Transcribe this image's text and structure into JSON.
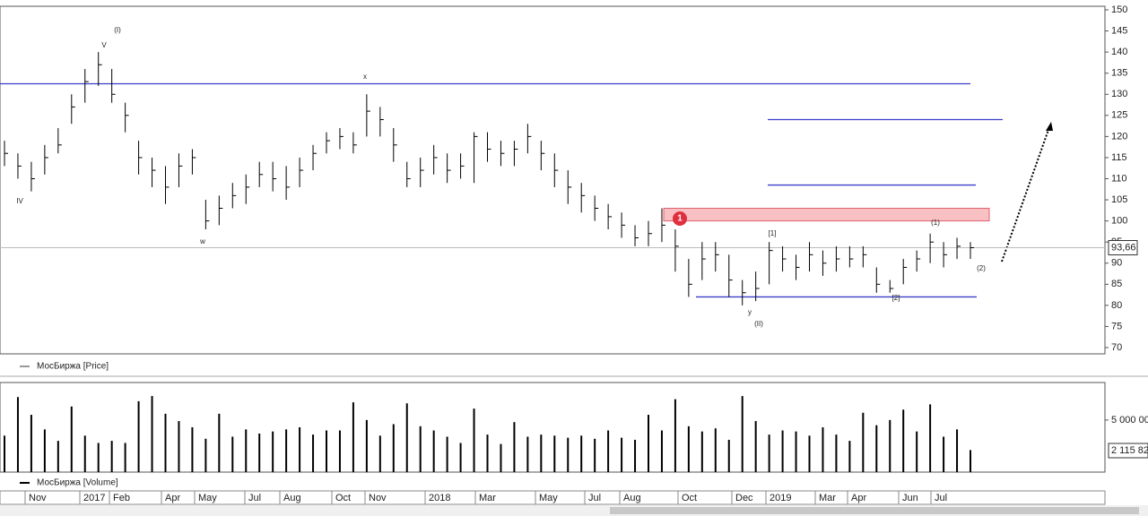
{
  "chart_data": [
    {
      "type": "ohlc",
      "legend": "МосБиржа [Price]",
      "color": "#000000",
      "high": [
        119,
        116,
        114,
        118,
        122,
        130,
        136,
        140,
        136,
        128,
        119,
        115,
        113,
        116,
        117,
        105,
        106,
        109,
        111,
        114,
        114,
        113,
        115,
        118,
        121,
        122,
        121,
        130,
        127,
        122,
        114,
        115,
        118,
        116,
        116,
        121,
        121,
        119,
        119,
        123,
        119,
        116,
        112,
        109,
        106,
        104,
        102,
        99,
        100,
        103,
        98,
        91,
        95,
        95,
        92,
        86,
        88,
        95,
        94,
        92,
        95,
        93,
        94,
        94,
        94,
        89,
        86,
        91,
        93,
        97,
        95,
        96,
        95
      ],
      "low": [
        113,
        110,
        107,
        111,
        116,
        123,
        128,
        132,
        128,
        121,
        111,
        108,
        104,
        108,
        111,
        98,
        99,
        103,
        104,
        108,
        107,
        105,
        108,
        112,
        116,
        117,
        116,
        120,
        120,
        114,
        108,
        108,
        111,
        109,
        110,
        109,
        114,
        113,
        113,
        116,
        112,
        108,
        104,
        102,
        100,
        98,
        96,
        94,
        94,
        95,
        88,
        82,
        86,
        88,
        82,
        80,
        81,
        85,
        88,
        86,
        88,
        87,
        88,
        89,
        89,
        83,
        83,
        85,
        88,
        90,
        89,
        91,
        91
      ],
      "close": [
        116,
        113,
        110,
        115,
        118,
        127,
        133,
        137,
        130,
        125,
        115,
        112,
        108,
        113,
        115,
        100,
        103,
        106,
        108,
        111,
        110,
        108,
        112,
        116,
        119,
        120,
        118,
        126,
        124,
        118,
        110,
        112,
        115,
        112,
        113,
        120,
        117,
        116,
        117,
        120,
        116,
        112,
        108,
        106,
        103,
        101,
        99,
        96,
        97,
        99,
        94,
        85,
        91,
        92,
        86,
        83,
        84,
        93,
        91,
        89,
        92,
        90,
        91,
        91,
        92,
        85,
        84,
        89,
        91,
        95,
        92,
        94,
        93.66
      ],
      "ylim": [
        70,
        150
      ],
      "yticks": [
        70,
        75,
        80,
        85,
        90,
        95,
        100,
        105,
        110,
        115,
        120,
        125,
        130,
        135,
        140,
        145,
        150
      ],
      "last": {
        "value": 93.66,
        "label": "93,66"
      },
      "levels": [
        132.5,
        124,
        108.5,
        82
      ],
      "level_color": "#3a3fc8",
      "zone": [
        100,
        103
      ],
      "zone_color": "#f9c0c4",
      "marker": "1",
      "annotations": [
        "(I)",
        "V",
        "IV",
        "w",
        "x",
        "y",
        "(II)",
        "[1]",
        "[2]",
        "(1)",
        "(2)"
      ]
    },
    {
      "type": "bar",
      "legend": "МосБиржа [Volume]",
      "color": "#000000",
      "values": [
        3500000,
        7200000,
        5500000,
        4100000,
        3000000,
        6300000,
        3500000,
        2800000,
        3000000,
        2800000,
        6800000,
        7300000,
        5600000,
        4900000,
        4300000,
        3200000,
        5600000,
        3400000,
        4100000,
        3700000,
        3900000,
        4100000,
        4300000,
        3600000,
        4000000,
        4000000,
        6700000,
        5000000,
        3500000,
        4600000,
        6600000,
        4400000,
        4000000,
        3400000,
        2800000,
        6100000,
        3600000,
        2700000,
        4800000,
        3400000,
        3600000,
        3500000,
        3300000,
        3500000,
        3200000,
        4000000,
        3300000,
        3100000,
        5500000,
        4000000,
        7000000,
        4400000,
        3900000,
        4200000,
        3100000,
        7300000,
        4900000,
        3600000,
        4000000,
        3900000,
        3500000,
        4300000,
        3600000,
        3000000,
        5700000,
        4500000,
        5000000,
        6000000,
        3900000,
        6500000,
        3400000,
        4100000,
        2115820
      ],
      "ylim": [
        0,
        8600000
      ],
      "yticks": [
        {
          "value": 5000000,
          "label": "5 000 00"
        }
      ],
      "last_label": "2 115 82",
      "time_labels": [
        "Nov",
        "2017",
        "Feb",
        "Apr",
        "May",
        "Jul",
        "Aug",
        "Oct",
        "Nov",
        "2018",
        "Mar",
        "May",
        "Jul",
        "Aug",
        "Oct",
        "Dec",
        "2019",
        "Mar",
        "Apr",
        "Jun",
        "Jul"
      ]
    }
  ]
}
